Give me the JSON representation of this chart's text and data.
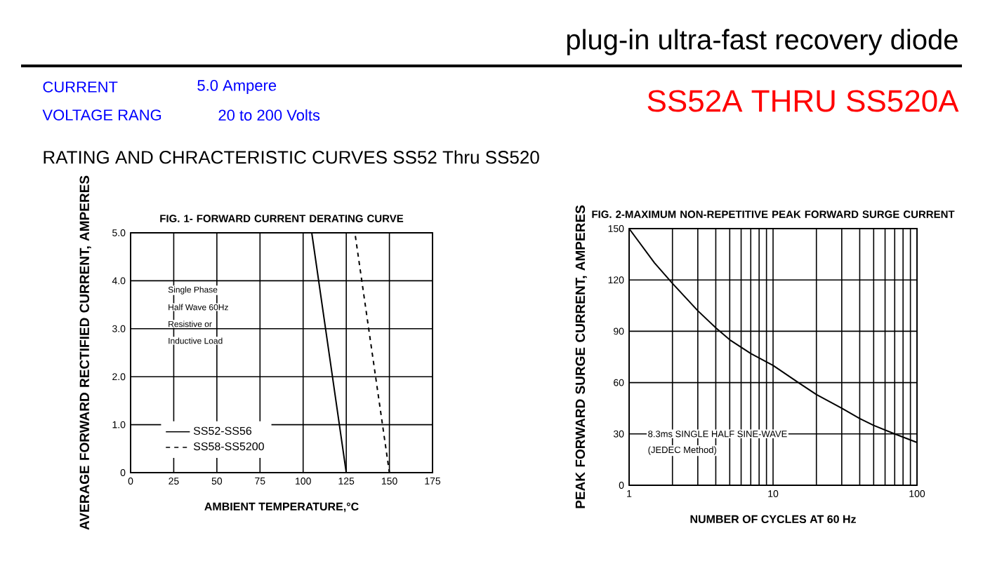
{
  "chart_data": [
    {
      "type": "line",
      "title": "FIG. 1- FORWARD CURRENT DERATING CURVE",
      "xlabel": "AMBIENT TEMPERATURE,°C",
      "ylabel": "AVERAGE FORWARD RECTIFIED CURRENT, AMPERES",
      "annotations": [
        "plug-in ultra-fast recovery diode",
        "CURRENT",
        "5.0  Ampere",
        "VOLTAGE RANG",
        "20  to  200  Volts",
        "SS52A THRU SS520A",
        "RATING AND CHRACTERISTIC CURVES SS52 Thru SS520",
        "Single Phase",
        "Half Wave 60Hz",
        "Resistive or",
        "Inductive Load"
      ],
      "series": [
        {
          "name": "SS52-SS56",
          "color": "#000000",
          "x": [
            0,
            105,
            125
          ],
          "values": [
            5,
            5,
            0
          ],
          "line_style": "solid"
        },
        {
          "name": "SS58-SS5200",
          "color": "#000000",
          "x": [
            0,
            130,
            150
          ],
          "values": [
            5,
            5,
            0
          ],
          "line_style": "dashed"
        }
      ],
      "xlim": [
        0,
        175
      ],
      "ylim": [
        0,
        5
      ],
      "xticks": [
        0,
        25,
        50,
        75,
        100,
        125,
        150,
        175
      ],
      "yticks": [
        0,
        {
          "value": 1,
          "label": "1.0"
        },
        {
          "value": 2,
          "label": "2.0"
        },
        {
          "value": 3,
          "label": "3.0"
        },
        {
          "value": 4,
          "label": "4.0"
        },
        {
          "value": 5,
          "label": "5.0"
        }
      ],
      "grid": true,
      "legend": "bottom left"
    },
    {
      "type": "line",
      "title": "FIG. 2-MAXIMUM NON-REPETITIVE PEAK FORWARD SURGE CURRENT",
      "xlabel": "NUMBER OF CYCLES AT 60 Hz",
      "ylabel": "PEAK  FORWARD SURGE CURRENT, AMPERES",
      "annotations": [
        "8.3ms SINGLE HALF SINE-WAVE",
        "(JEDEC Method)"
      ],
      "series": [
        {
          "color": "#000000",
          "x": [
            1,
            1.5,
            2,
            3,
            4,
            5,
            7,
            10,
            15,
            20,
            30,
            40,
            50,
            70,
            100
          ],
          "values": [
            150,
            130,
            118,
            102,
            92,
            85,
            77,
            70,
            60,
            53,
            45,
            39,
            35,
            30,
            25
          ]
        }
      ],
      "xlim": [
        1,
        100
      ],
      "ylim": [
        0,
        150
      ],
      "xticks": [
        1,
        10,
        100
      ],
      "yticks": [
        0,
        30,
        60,
        90,
        120,
        150
      ],
      "grid": true,
      "log": "x",
      "legend": false
    }
  ]
}
